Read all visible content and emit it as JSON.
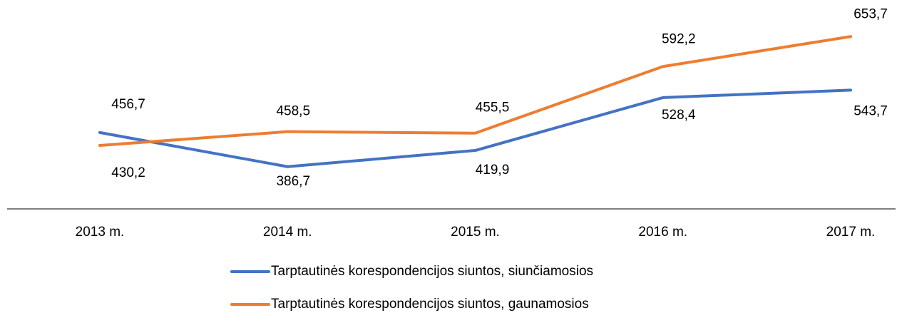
{
  "chart_data": {
    "type": "line",
    "categories": [
      "2013 m.",
      "2014 m.",
      "2015 m.",
      "2016 m.",
      "2017 m."
    ],
    "series": [
      {
        "name": "Tarptautinės korespondencijos siuntos, siunčiamosios",
        "color": "#4472c4",
        "values": [
          456.7,
          386.7,
          419.9,
          528.4,
          543.7
        ],
        "value_labels": [
          "456,7",
          "386,7",
          "419,9",
          "528,4",
          "543,7"
        ]
      },
      {
        "name": "Tarptautinės korespondencijos siuntos, gaunamosios",
        "color": "#ed7d31",
        "values": [
          430.2,
          458.5,
          455.5,
          592.2,
          653.7
        ],
        "value_labels": [
          "430,2",
          "458,5",
          "455,5",
          "592,2",
          "653,7"
        ]
      }
    ],
    "ylim": [
      300,
      700
    ],
    "legend": "bottom"
  }
}
